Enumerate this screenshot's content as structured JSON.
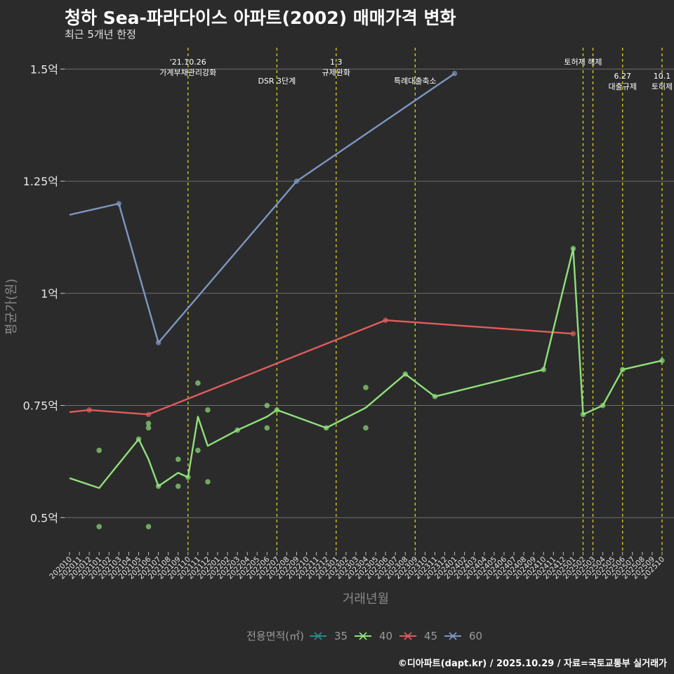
{
  "header": {
    "title": "청하 Sea-파라다이스 아파트(2002) 매매가격 변화",
    "subtitle": "최근 5개년 한정"
  },
  "footer": {
    "caption": "©디아파트(dapt.kr) / 2025.10.29 / 자료=국토교통부 실거래가"
  },
  "chart_data": {
    "type": "line",
    "title": "청하 Sea-파라다이스 아파트(2002) 매매가격 변화",
    "subtitle": "최근 5개년 한정",
    "xlabel": "거래년월",
    "ylabel": "평균가(원)",
    "ylim": [
      0.43,
      1.56
    ],
    "yticks": [
      {
        "value": 0.5,
        "label": "0.5억"
      },
      {
        "value": 0.75,
        "label": "0.75억"
      },
      {
        "value": 1.0,
        "label": "1억"
      },
      {
        "value": 1.25,
        "label": "1.25억"
      },
      {
        "value": 1.5,
        "label": "1.5억"
      }
    ],
    "categories": [
      "202010",
      "202011",
      "202012",
      "202101",
      "202102",
      "202103",
      "202104",
      "202105",
      "202106",
      "202107",
      "202108",
      "202109",
      "202110",
      "202111",
      "202112",
      "202201",
      "202202",
      "202203",
      "202204",
      "202205",
      "202206",
      "202207",
      "202208",
      "202209",
      "202210",
      "202211",
      "202212",
      "202301",
      "202302",
      "202303",
      "202304",
      "202305",
      "202306",
      "202307",
      "202308",
      "202309",
      "202310",
      "202311",
      "202312",
      "202401",
      "202402",
      "202403",
      "202404",
      "202405",
      "202406",
      "202407",
      "202408",
      "202409",
      "202410",
      "202411",
      "202412",
      "202501",
      "202502",
      "202503",
      "202504",
      "202505",
      "202506",
      "202507",
      "202508",
      "202509",
      "202510"
    ],
    "legend": {
      "title": "전용면적(㎡)",
      "position": "bottom",
      "items": [
        {
          "name": "35",
          "color": "#2a8a8a"
        },
        {
          "name": "40",
          "color": "#8fe07a"
        },
        {
          "name": "45",
          "color": "#e05c5c"
        },
        {
          "name": "60",
          "color": "#7d96c2"
        }
      ]
    },
    "series": [
      {
        "name": "60",
        "color": "#7d96c2",
        "line": [
          [
            0,
            1.175
          ],
          [
            5,
            1.2
          ],
          [
            9,
            0.89
          ],
          [
            23,
            1.25
          ],
          [
            39,
            1.49
          ]
        ],
        "points": [
          [
            5,
            1.2
          ],
          [
            9,
            0.89
          ],
          [
            23,
            1.25
          ],
          [
            39,
            1.49
          ]
        ]
      },
      {
        "name": "45",
        "color": "#e05c5c",
        "line": [
          [
            0,
            0.735
          ],
          [
            2,
            0.74
          ],
          [
            8,
            0.73
          ],
          [
            32,
            0.94
          ],
          [
            51,
            0.91
          ]
        ],
        "points": [
          [
            2,
            0.74
          ],
          [
            8,
            0.73
          ],
          [
            32,
            0.94
          ],
          [
            51,
            0.91
          ]
        ]
      },
      {
        "name": "40",
        "color": "#8fe07a",
        "line": [
          [
            0,
            0.588
          ],
          [
            3,
            0.566
          ],
          [
            7,
            0.675
          ],
          [
            8,
            0.63
          ],
          [
            9,
            0.57
          ],
          [
            11,
            0.6
          ],
          [
            12,
            0.59
          ],
          [
            13,
            0.725
          ],
          [
            14,
            0.66
          ],
          [
            17,
            0.695
          ],
          [
            20,
            0.725
          ],
          [
            21,
            0.74
          ],
          [
            26,
            0.7
          ],
          [
            30,
            0.745
          ],
          [
            34,
            0.82
          ],
          [
            37,
            0.77
          ],
          [
            48,
            0.83
          ],
          [
            51,
            1.1
          ],
          [
            52,
            0.73
          ],
          [
            54,
            0.75
          ],
          [
            56,
            0.83
          ],
          [
            60,
            0.85
          ]
        ],
        "points": [
          [
            3,
            0.65
          ],
          [
            3,
            0.48
          ],
          [
            7,
            0.675
          ],
          [
            8,
            0.71
          ],
          [
            8,
            0.7
          ],
          [
            8,
            0.48
          ],
          [
            9,
            0.57
          ],
          [
            11,
            0.63
          ],
          [
            11,
            0.57
          ],
          [
            12,
            0.59
          ],
          [
            13,
            0.8
          ],
          [
            13,
            0.65
          ],
          [
            14,
            0.74
          ],
          [
            14,
            0.58
          ],
          [
            17,
            0.695
          ],
          [
            20,
            0.75
          ],
          [
            20,
            0.7
          ],
          [
            21,
            0.74
          ],
          [
            26,
            0.7
          ],
          [
            30,
            0.79
          ],
          [
            30,
            0.7
          ],
          [
            34,
            0.82
          ],
          [
            37,
            0.77
          ],
          [
            48,
            0.83
          ],
          [
            51,
            1.1
          ],
          [
            52,
            0.73
          ],
          [
            54,
            0.75
          ],
          [
            56,
            0.83
          ],
          [
            60,
            0.85
          ]
        ]
      }
    ],
    "annotations": [
      {
        "x": 12,
        "lines": [
          "'21.10.26",
          "가계부채관리강화"
        ],
        "row": 0
      },
      {
        "x": 21,
        "lines": [
          "DSR 3단계"
        ],
        "row": 1
      },
      {
        "x": 27,
        "lines": [
          "1.3",
          "규제완화"
        ],
        "row": 0
      },
      {
        "x": 35,
        "lines": [
          "특례대출축소"
        ],
        "row": 1
      },
      {
        "x": 52,
        "lines": [
          "토허제 해제"
        ],
        "row": 0
      },
      {
        "x": 53,
        "lines": [],
        "row": 0
      },
      {
        "x": 56,
        "lines": [
          "6.27",
          "대출규제"
        ],
        "row": 2
      },
      {
        "x": 60,
        "lines": [
          "10.1",
          "토허제"
        ],
        "row": 2
      }
    ]
  }
}
